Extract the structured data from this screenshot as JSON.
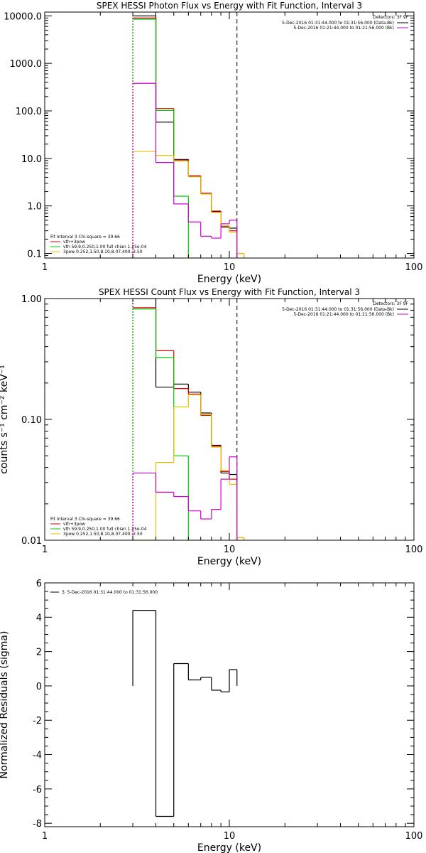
{
  "chart_data": [
    {
      "id": "photon",
      "type": "line",
      "title": "SPEX HESSI Photon Flux vs Energy with Fit Function, Interval 3",
      "xlabel": "Energy (keV)",
      "ylabel": "",
      "x_scale": "log",
      "y_scale": "log",
      "xlim": [
        1,
        100
      ],
      "ylim": [
        0.08,
        12000
      ],
      "x_ticks": [
        {
          "v": 1,
          "label": "1"
        },
        {
          "v": 10,
          "label": "10"
        },
        {
          "v": 100,
          "label": "100"
        }
      ],
      "y_ticks": [
        {
          "v": 0.1,
          "label": "0.1"
        },
        {
          "v": 1,
          "label": "1.0"
        },
        {
          "v": 10,
          "label": "10.0"
        },
        {
          "v": 100,
          "label": "100.0"
        },
        {
          "v": 1000,
          "label": "1000.0"
        },
        {
          "v": 10000,
          "label": "10000.0"
        }
      ],
      "grid": false,
      "vline": 11,
      "edges": [
        3,
        4,
        5,
        6,
        7,
        8,
        9,
        10,
        11,
        12
      ],
      "series": [
        {
          "name": "data",
          "color": "#000000",
          "values": [
            10000,
            58,
            9.5,
            4.2,
            1.8,
            0.75,
            0.36,
            0.34,
            null
          ]
        },
        {
          "name": "vth+3pow",
          "color": "#e00000",
          "values": [
            9000,
            112,
            9,
            4.3,
            1.85,
            0.78,
            0.37,
            0.3,
            0.1
          ]
        },
        {
          "name": "vth",
          "color": "#00cc00",
          "values": [
            8500,
            102,
            1.6,
            0.01,
            null,
            null,
            null,
            null,
            null
          ]
        },
        {
          "name": "3pow",
          "color": "#e8c000",
          "values": [
            14,
            11.5,
            8.8,
            4.1,
            1.78,
            0.73,
            0.38,
            0.28,
            0.1
          ]
        },
        {
          "name": "background",
          "color": "#d000d0",
          "values": [
            380,
            8.2,
            1.1,
            0.46,
            0.23,
            0.21,
            0.42,
            0.5,
            null
          ]
        }
      ],
      "detectors": "Detectors: 3F 9F",
      "time_legend": [
        {
          "text": "5-Dec-2016 01:31:44.000 to 01:31:56.000 (Data-Bk)",
          "color": "#000000"
        },
        {
          "text": "5-Dec-2016 01:21:44.000 to 01:21:56.000 (Bk)",
          "color": "#d000d0"
        }
      ],
      "fit_title": "Fit Interval 3   Chi-square = 39.66",
      "fit_legend": [
        {
          "text": "vth+3pow",
          "color": "#e00000"
        },
        {
          "text": "vth 59.9,0.250,1.00  full chian 1.25e-04",
          "color": "#00cc00"
        },
        {
          "text": "3pow 0.252,1.50,8.10,8.07,400.,2.50",
          "color": "#e8c000"
        }
      ]
    },
    {
      "id": "count",
      "type": "line",
      "title": "SPEX HESSI Count Flux vs Energy with Fit Function, Interval 3",
      "xlabel": "Energy (keV)",
      "ylabel": "counts s⁻¹ cm⁻² keV⁻¹",
      "x_scale": "log",
      "y_scale": "log",
      "xlim": [
        1,
        100
      ],
      "ylim": [
        0.01,
        1.0
      ],
      "x_ticks": [
        {
          "v": 1,
          "label": "1"
        },
        {
          "v": 10,
          "label": "10"
        },
        {
          "v": 100,
          "label": "100"
        }
      ],
      "y_ticks": [
        {
          "v": 0.01,
          "label": "0.01"
        },
        {
          "v": 0.1,
          "label": "0.10"
        },
        {
          "v": 1,
          "label": "1.00"
        }
      ],
      "grid": false,
      "vline": 11,
      "edges": [
        3,
        4,
        5,
        6,
        7,
        8,
        9,
        10,
        11,
        12
      ],
      "series": [
        {
          "name": "data",
          "color": "#000000",
          "values": [
            1.0,
            0.185,
            0.196,
            0.168,
            0.113,
            0.061,
            0.036,
            0.035,
            null
          ]
        },
        {
          "name": "vth+3pow",
          "color": "#e00000",
          "values": [
            0.84,
            0.37,
            0.18,
            0.162,
            0.108,
            0.06,
            0.037,
            0.032,
            0.0105
          ]
        },
        {
          "name": "vth",
          "color": "#00cc00",
          "values": [
            0.82,
            0.325,
            0.05,
            0.008,
            null,
            null,
            null,
            null,
            null
          ]
        },
        {
          "name": "3pow",
          "color": "#e8c000",
          "values": [
            0.008,
            0.044,
            0.127,
            0.16,
            0.11,
            0.059,
            0.038,
            0.029,
            0.0105
          ]
        },
        {
          "name": "background",
          "color": "#d000d0",
          "values": [
            0.036,
            0.025,
            0.023,
            0.0175,
            0.015,
            0.018,
            0.032,
            0.049,
            null
          ]
        }
      ],
      "detectors": "Detectors: 3F 9F",
      "time_legend": [
        {
          "text": "5-Dec-2016 01:31:44.000 to 01:31:56.000 (Data-Bk)",
          "color": "#000000"
        },
        {
          "text": "5-Dec-2016 01:21:44.000 to 01:21:56.000 (Bk)",
          "color": "#d000d0"
        }
      ],
      "fit_title": "Fit Interval 3   Chi-square = 39.66",
      "fit_legend": [
        {
          "text": "vth+3pow",
          "color": "#e00000"
        },
        {
          "text": "vth 59.9,0.250,1.00  full chian 1.25e-04",
          "color": "#00cc00"
        },
        {
          "text": "3pow 0.252,1.50,8.10,8.07,400.,2.50",
          "color": "#e8c000"
        }
      ]
    },
    {
      "id": "residuals",
      "type": "line",
      "title": "",
      "xlabel": "Energy (keV)",
      "ylabel": "Normalized Residuals (sigma)",
      "x_scale": "log",
      "y_scale": "linear",
      "xlim": [
        1,
        100
      ],
      "ylim": [
        -8.2,
        6
      ],
      "x_ticks": [
        {
          "v": 1,
          "label": "1"
        },
        {
          "v": 10,
          "label": "10"
        },
        {
          "v": 100,
          "label": "100"
        }
      ],
      "y_ticks": [
        {
          "v": -8,
          "label": "-8"
        },
        {
          "v": -6,
          "label": "-6"
        },
        {
          "v": -4,
          "label": "-4"
        },
        {
          "v": -2,
          "label": "-2"
        },
        {
          "v": 0,
          "label": "0"
        },
        {
          "v": 2,
          "label": "2"
        },
        {
          "v": 4,
          "label": "4"
        },
        {
          "v": 6,
          "label": "6"
        }
      ],
      "grid": false,
      "edges": [
        3,
        4,
        5,
        6,
        7,
        8,
        9,
        10,
        11
      ],
      "series": [
        {
          "name": "3.  5-Dec-2016 01:31:44.000 to 01:31:56.000",
          "color": "#000000",
          "values": [
            4.4,
            -7.6,
            1.3,
            0.35,
            0.5,
            -0.25,
            -0.35,
            0.95
          ]
        }
      ],
      "legend": [
        {
          "text": "3.  5-Dec-2016 01:31:44.000 to 01:31:56.000",
          "color": "#000000"
        }
      ]
    }
  ]
}
